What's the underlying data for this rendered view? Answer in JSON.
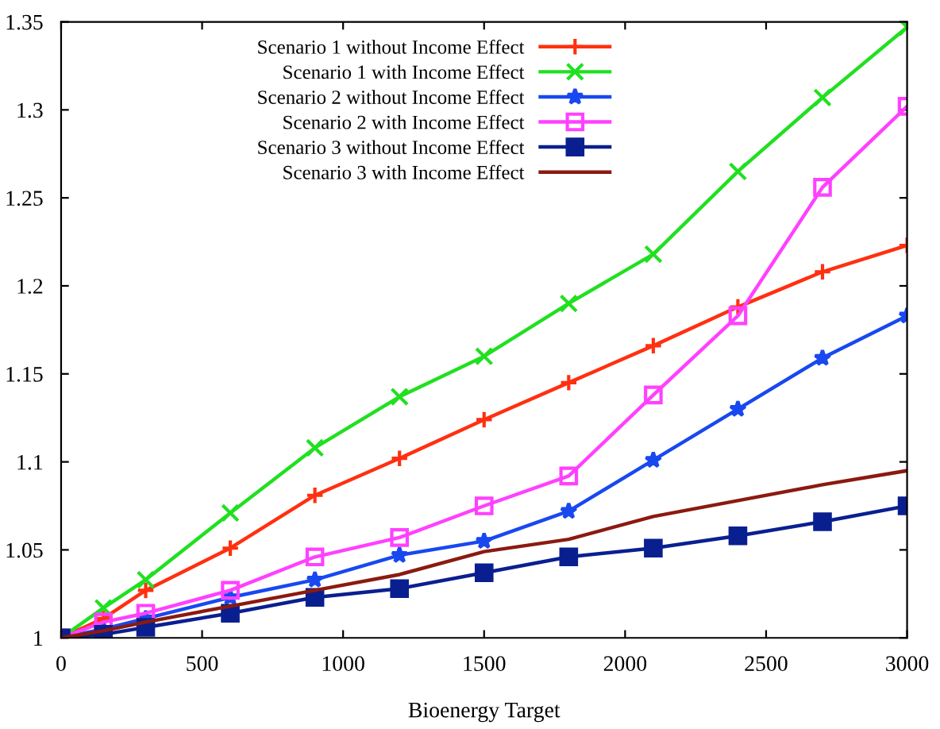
{
  "chart_data": {
    "type": "line",
    "xlabel": "Bioenergy Target",
    "x": [
      0,
      150,
      300,
      600,
      900,
      1200,
      1500,
      1800,
      2100,
      2400,
      2700,
      3000
    ],
    "series": [
      {
        "name": "Scenario 1 without Income Effect",
        "color": "#ff3010",
        "marker": "plus",
        "values": [
          1,
          1.011,
          1.027,
          1.051,
          1.081,
          1.102,
          1.124,
          1.145,
          1.166,
          1.188,
          1.208,
          1.223
        ]
      },
      {
        "name": "Scenario 1 with Income Effect",
        "color": "#20e020",
        "marker": "cross",
        "values": [
          1,
          1.017,
          1.033,
          1.071,
          1.108,
          1.137,
          1.16,
          1.19,
          1.218,
          1.265,
          1.307,
          1.347
        ]
      },
      {
        "name": "Scenario 2 without Income Effect",
        "color": "#1848f0",
        "marker": "star",
        "values": [
          1,
          1.005,
          1.011,
          1.023,
          1.033,
          1.047,
          1.055,
          1.072,
          1.101,
          1.13,
          1.159,
          1.183
        ]
      },
      {
        "name": "Scenario 2 with Income Effect",
        "color": "#ff40ff",
        "marker": "square_open",
        "values": [
          1,
          1.009,
          1.014,
          1.027,
          1.046,
          1.057,
          1.075,
          1.092,
          1.138,
          1.183,
          1.256,
          1.302
        ]
      },
      {
        "name": "Scenario 3 without Income Effect",
        "color": "#0a1f8f",
        "marker": "square",
        "values": [
          1,
          1.002,
          1.006,
          1.014,
          1.023,
          1.028,
          1.037,
          1.046,
          1.051,
          1.058,
          1.066,
          1.075
        ]
      },
      {
        "name": "Scenario 3 with Income Effect",
        "color": "#8b1a10",
        "marker": "none",
        "values": [
          1,
          1.004,
          1.009,
          1.018,
          1.027,
          1.036,
          1.049,
          1.056,
          1.069,
          1.078,
          1.087,
          1.095
        ]
      }
    ],
    "xlim": [
      0,
      3000
    ],
    "xticks": [
      0,
      500,
      1000,
      1500,
      2000,
      2500,
      3000
    ],
    "ylim": [
      1,
      1.35
    ],
    "yticks": [
      1,
      1.05,
      1.1,
      1.15,
      1.2,
      1.25,
      1.3,
      1.35
    ],
    "legend": "top",
    "grid": false
  }
}
